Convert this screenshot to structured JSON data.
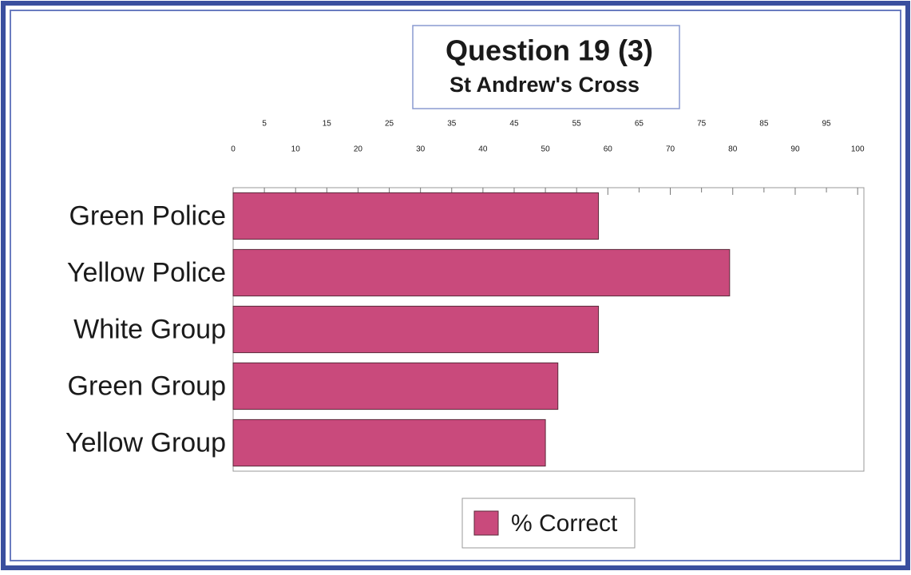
{
  "chart_data": {
    "type": "bar",
    "orientation": "horizontal",
    "title": "Question 19 (3)",
    "subtitle": "St Andrew's Cross",
    "categories": [
      "Green Police",
      "Yellow Police",
      "White Group",
      "Green Group",
      "Yellow Group"
    ],
    "series": [
      {
        "name": "% Correct",
        "color": "#c94a7c",
        "values": [
          58.5,
          79.5,
          58.5,
          52,
          50
        ]
      }
    ],
    "xlim": [
      0,
      101
    ],
    "xticks": [
      0,
      5,
      10,
      15,
      20,
      25,
      30,
      35,
      40,
      45,
      50,
      55,
      60,
      65,
      70,
      75,
      80,
      85,
      90,
      95,
      100
    ],
    "legend": "bottom"
  }
}
